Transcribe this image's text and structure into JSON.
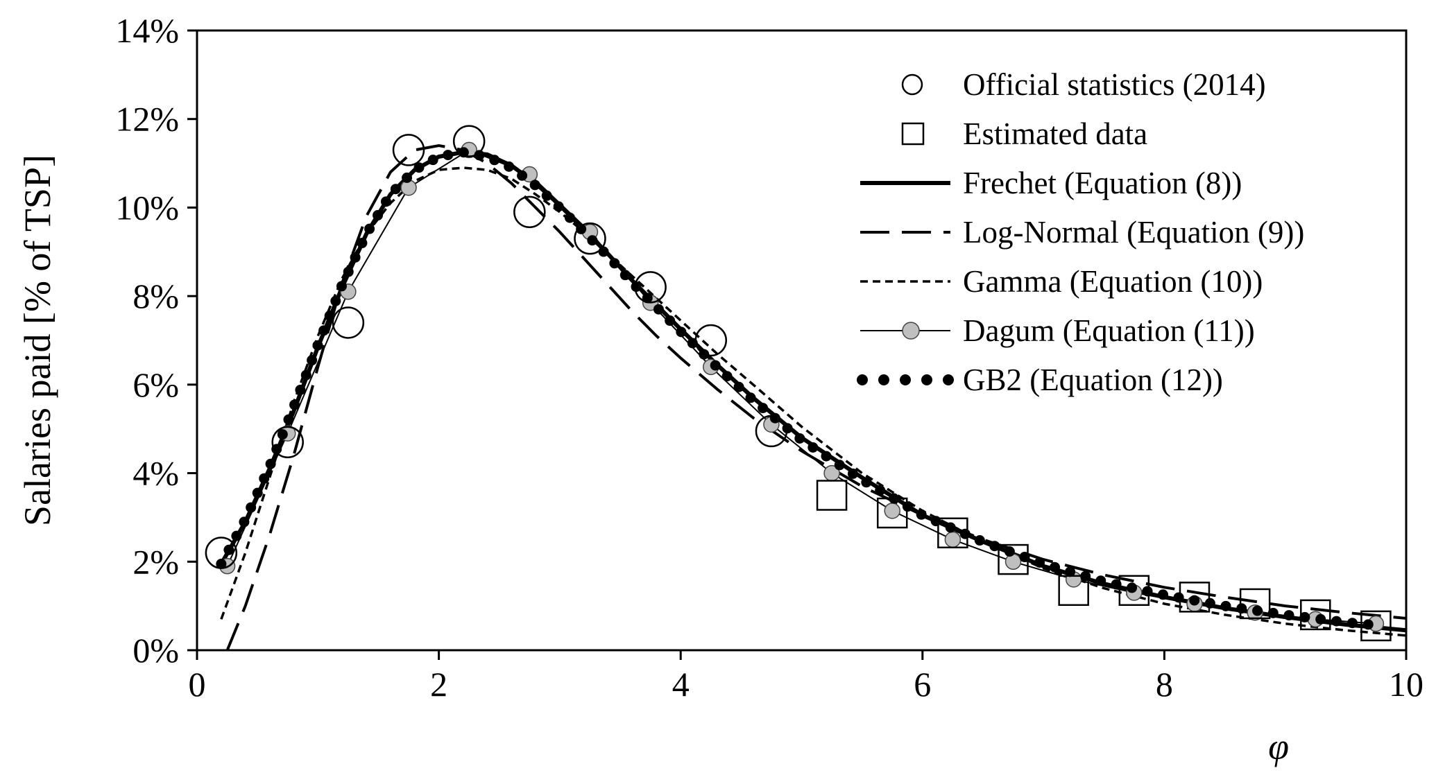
{
  "chart_data": {
    "type": "line",
    "title": "",
    "xlabel": "φ",
    "ylabel": "Salaries paid [% of TSP]",
    "xlim": [
      0,
      10
    ],
    "ylim": [
      0,
      14
    ],
    "x_ticks": [
      0,
      2,
      4,
      6,
      8,
      10
    ],
    "x_tick_labels": [
      "0",
      "2",
      "4",
      "6",
      "8",
      "10"
    ],
    "y_ticks": [
      0,
      2,
      4,
      6,
      8,
      10,
      12,
      14
    ],
    "y_tick_labels": [
      "0%",
      "2%",
      "4%",
      "6%",
      "8%",
      "10%",
      "12%",
      "14%"
    ],
    "legend_position": "top-right",
    "series": [
      {
        "name": "Official statistics (2014)",
        "style": "open-circle",
        "x": [
          0.2,
          0.75,
          1.25,
          1.75,
          2.25,
          2.75,
          3.25,
          3.75,
          4.25,
          4.75
        ],
        "y": [
          2.2,
          4.7,
          7.4,
          11.3,
          11.5,
          9.9,
          9.3,
          8.2,
          7.0,
          4.95
        ]
      },
      {
        "name": "Estimated data",
        "style": "open-square",
        "x": [
          5.25,
          5.75,
          6.25,
          6.75,
          7.25,
          7.75,
          8.25,
          8.75,
          9.25,
          9.75
        ],
        "y": [
          3.5,
          3.1,
          2.65,
          2.05,
          1.35,
          1.35,
          1.2,
          1.05,
          0.8,
          0.55
        ]
      },
      {
        "name": "Frechet (Equation (8))",
        "style": "solid-thick",
        "x": [
          0.2,
          0.4,
          0.6,
          0.8,
          1.0,
          1.2,
          1.4,
          1.6,
          1.8,
          2.0,
          2.2,
          2.4,
          2.6,
          2.8,
          3.0,
          3.2,
          3.4,
          3.6,
          3.8,
          4.0,
          4.3,
          4.6,
          5.0,
          5.5,
          6.0,
          6.5,
          7.0,
          7.5,
          8.0,
          8.5,
          9.0,
          9.5,
          10.0
        ],
        "y": [
          1.95,
          2.9,
          4.1,
          5.4,
          6.85,
          8.2,
          9.4,
          10.3,
          10.85,
          11.15,
          11.25,
          11.2,
          10.95,
          10.55,
          10.05,
          9.5,
          8.95,
          8.35,
          7.8,
          7.25,
          6.45,
          5.7,
          4.8,
          3.9,
          3.05,
          2.45,
          1.9,
          1.5,
          1.2,
          0.95,
          0.75,
          0.58,
          0.45
        ]
      },
      {
        "name": "Log-Normal (Equation (9))",
        "style": "long-dash",
        "x": [
          0.25,
          0.4,
          0.6,
          0.8,
          1.0,
          1.2,
          1.4,
          1.6,
          1.8,
          2.0,
          2.2,
          2.4,
          2.6,
          2.8,
          3.0,
          3.2,
          3.4,
          3.6,
          3.8,
          4.0,
          4.3,
          4.6,
          5.0,
          5.5,
          6.0,
          6.5,
          7.0,
          7.5,
          8.0,
          8.5,
          9.0,
          9.5,
          10.0
        ],
        "y": [
          0.0,
          1.0,
          2.6,
          4.4,
          6.4,
          8.3,
          9.8,
          10.8,
          11.3,
          11.4,
          11.3,
          11.0,
          10.55,
          10.0,
          9.45,
          8.85,
          8.25,
          7.65,
          7.1,
          6.6,
          5.9,
          5.25,
          4.5,
          3.7,
          3.05,
          2.5,
          2.05,
          1.7,
          1.42,
          1.2,
          1.0,
          0.85,
          0.72
        ]
      },
      {
        "name": "Gamma (Equation (10))",
        "style": "short-dash",
        "x": [
          0.2,
          0.4,
          0.6,
          0.8,
          1.0,
          1.2,
          1.4,
          1.6,
          1.8,
          2.0,
          2.2,
          2.4,
          2.6,
          2.8,
          3.0,
          3.2,
          3.4,
          3.6,
          3.8,
          4.0,
          4.3,
          4.6,
          5.0,
          5.5,
          6.0,
          6.5,
          7.0,
          7.5,
          8.0,
          8.5,
          9.0,
          9.5,
          10.0
        ],
        "y": [
          0.7,
          2.2,
          3.9,
          5.6,
          7.1,
          8.4,
          9.4,
          10.1,
          10.6,
          10.85,
          10.9,
          10.85,
          10.65,
          10.3,
          9.9,
          9.45,
          8.95,
          8.45,
          7.95,
          7.45,
          6.7,
          6.0,
          5.05,
          4.0,
          3.15,
          2.45,
          1.85,
          1.4,
          1.05,
          0.8,
          0.6,
          0.45,
          0.33
        ]
      },
      {
        "name": "Dagum (Equation (11))",
        "style": "line-gray-circle",
        "x": [
          0.25,
          0.75,
          1.25,
          1.75,
          2.25,
          2.75,
          3.25,
          3.75,
          4.25,
          4.75,
          5.25,
          5.75,
          6.25,
          6.75,
          7.25,
          7.75,
          8.25,
          8.75,
          9.25,
          9.75
        ],
        "y": [
          1.9,
          4.9,
          8.1,
          10.45,
          11.3,
          10.75,
          9.45,
          7.85,
          6.4,
          5.1,
          4.0,
          3.15,
          2.5,
          2.0,
          1.6,
          1.3,
          1.05,
          0.85,
          0.7,
          0.6
        ]
      },
      {
        "name": "GB2 (Equation (12))",
        "style": "dots",
        "x": [
          0.2,
          0.4,
          0.6,
          0.8,
          1.0,
          1.2,
          1.4,
          1.6,
          1.8,
          2.0,
          2.2,
          2.4,
          2.6,
          2.8,
          3.0,
          3.2,
          3.4,
          3.6,
          3.8,
          4.0,
          4.3,
          4.6,
          5.0,
          5.5,
          6.0,
          6.5,
          7.0,
          7.5,
          8.0,
          8.5,
          9.0,
          9.5,
          9.8
        ],
        "y": [
          1.95,
          2.95,
          4.15,
          5.5,
          6.9,
          8.25,
          9.4,
          10.3,
          10.85,
          11.15,
          11.25,
          11.15,
          10.9,
          10.5,
          10.0,
          9.45,
          8.9,
          8.3,
          7.75,
          7.2,
          6.4,
          5.65,
          4.75,
          3.85,
          3.05,
          2.45,
          1.95,
          1.55,
          1.25,
          1.0,
          0.8,
          0.63,
          0.55
        ]
      }
    ]
  }
}
